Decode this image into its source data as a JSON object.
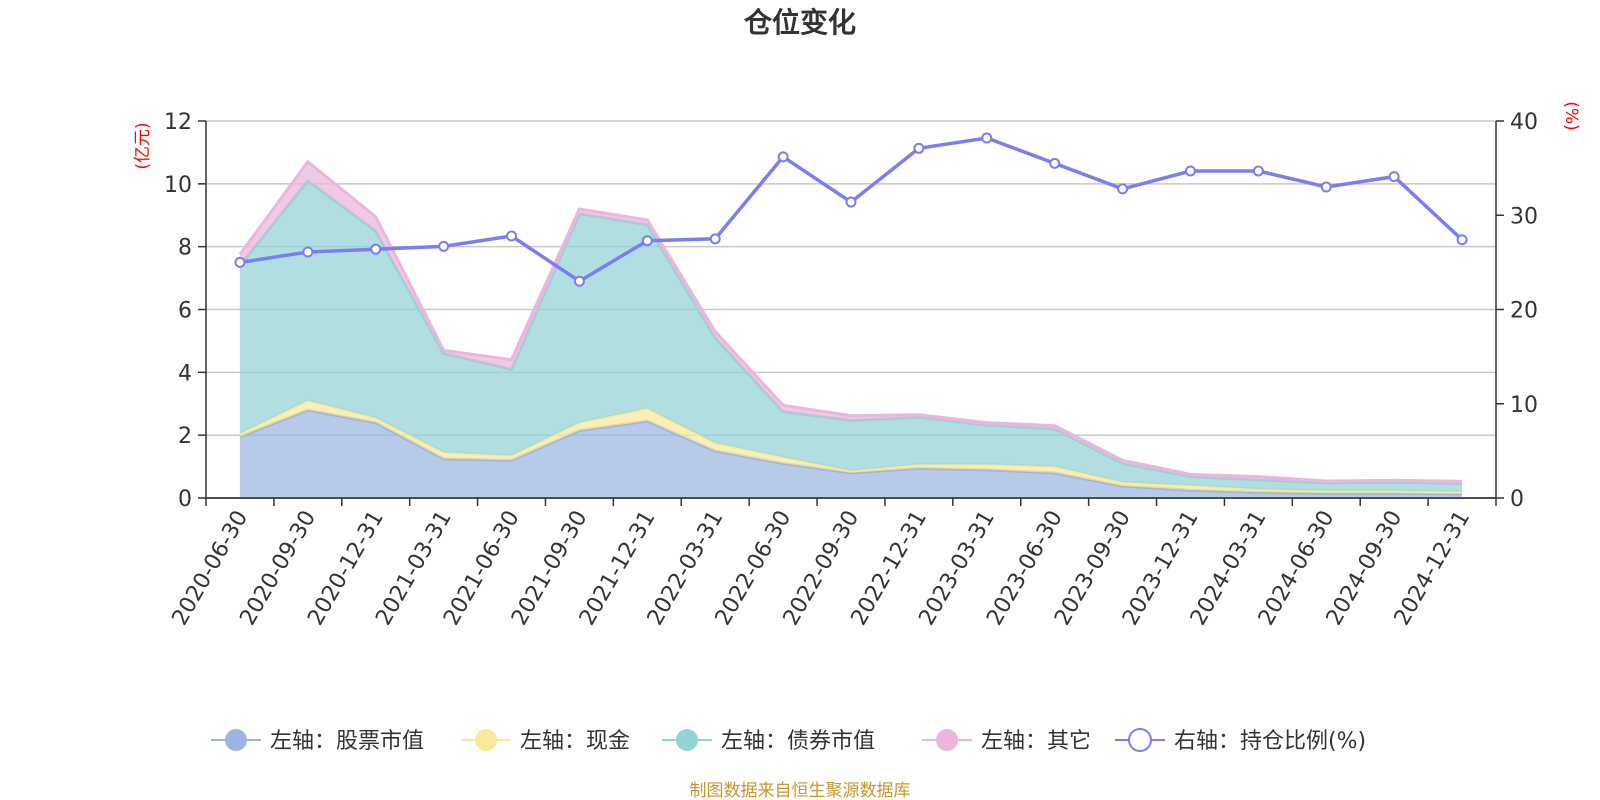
{
  "chart_data": {
    "type": "area",
    "title": "仓位变化",
    "categories": [
      "2020-06-30",
      "2020-09-30",
      "2020-12-31",
      "2021-03-31",
      "2021-06-30",
      "2021-09-30",
      "2021-12-31",
      "2022-03-31",
      "2022-06-30",
      "2022-09-30",
      "2022-12-31",
      "2023-03-31",
      "2023-06-30",
      "2023-09-30",
      "2023-12-31",
      "2024-03-31",
      "2024-06-30",
      "2024-09-30",
      "2024-12-31"
    ],
    "left_axis": {
      "unit": "(亿元)",
      "min": 0,
      "max": 12,
      "ticks": [
        "0",
        "2",
        "4",
        "6",
        "8",
        "10",
        "12"
      ]
    },
    "right_axis": {
      "unit": "(%)",
      "min": 0,
      "max": 40,
      "ticks": [
        "0",
        "10",
        "20",
        "30",
        "40"
      ]
    },
    "series": [
      {
        "name": "左轴：股票市值",
        "color": "#9bb5e0",
        "values": [
          1.95,
          2.8,
          2.4,
          1.25,
          1.2,
          2.15,
          2.45,
          1.5,
          1.1,
          0.8,
          0.95,
          0.9,
          0.8,
          0.38,
          0.25,
          0.18,
          0.15,
          0.15,
          0.13
        ]
      },
      {
        "name": "左轴：现金",
        "color": "#fae99c",
        "values": [
          0.1,
          0.3,
          0.15,
          0.2,
          0.15,
          0.25,
          0.4,
          0.25,
          0.2,
          0.07,
          0.12,
          0.17,
          0.2,
          0.12,
          0.15,
          0.1,
          0.08,
          0.08,
          0.07
        ]
      },
      {
        "name": "左轴：债券市值",
        "color": "#93d3d5",
        "values": [
          5.35,
          7.0,
          5.95,
          3.15,
          2.75,
          6.65,
          5.85,
          3.35,
          1.45,
          1.6,
          1.5,
          1.25,
          1.2,
          0.6,
          0.28,
          0.3,
          0.25,
          0.27,
          0.27
        ]
      },
      {
        "name": "左轴：其它",
        "color": "#eab6db",
        "values": [
          0.35,
          0.6,
          0.45,
          0.1,
          0.3,
          0.15,
          0.15,
          0.2,
          0.2,
          0.15,
          0.08,
          0.08,
          0.1,
          0.1,
          0.07,
          0.1,
          0.06,
          0.06,
          0.06
        ]
      },
      {
        "name": "右轴：持仓比例(%)",
        "color": "#7a7ef0",
        "axis": "right",
        "values": [
          25.0,
          26.1,
          26.4,
          26.7,
          27.8,
          23.0,
          27.3,
          27.5,
          36.2,
          31.4,
          37.1,
          38.2,
          35.5,
          32.8,
          34.7,
          34.7,
          33.0,
          34.1,
          27.4
        ]
      }
    ]
  },
  "source_text": "制图数据来自恒生聚源数据库"
}
